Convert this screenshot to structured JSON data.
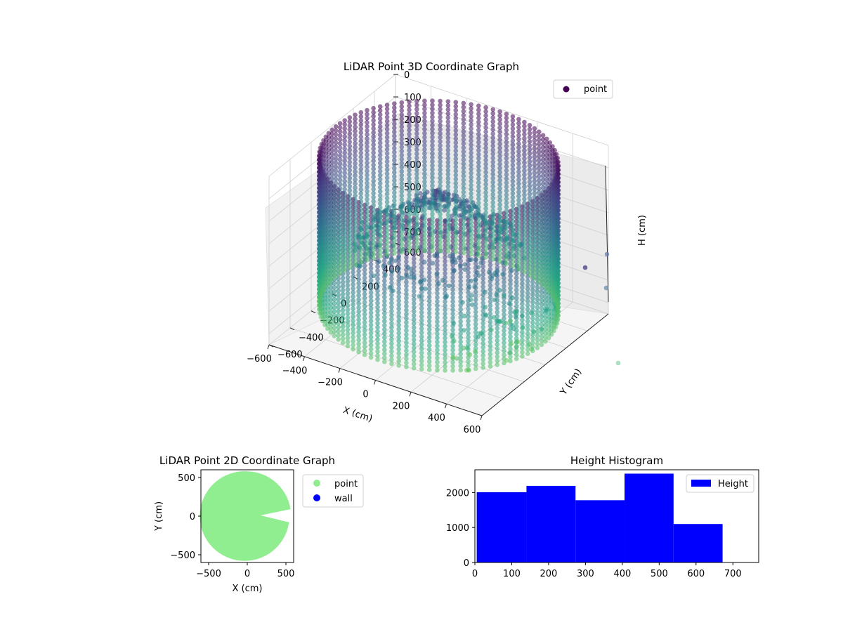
{
  "chart_data": [
    {
      "type": "scatter",
      "projection": "3d",
      "title": "LiDAR Point 3D Coordinate Graph",
      "xlabel": "X (cm)",
      "ylabel": "Y (cm)",
      "zlabel": "H (cm)",
      "xlim": [
        -600,
        600
      ],
      "ylim": [
        -600,
        600
      ],
      "zlim": [
        750,
        0
      ],
      "x_ticks": [
        "−600",
        "−400",
        "−200",
        "0",
        "200",
        "400",
        "600"
      ],
      "y_ticks": [
        "−600",
        "−400",
        "−200",
        "0",
        "200",
        "400",
        "600"
      ],
      "z_ticks": [
        "0",
        "100",
        "200",
        "300",
        "400",
        "500",
        "600",
        "700"
      ],
      "legend": [
        "point"
      ],
      "legend_position": "upper-right",
      "colormap": "viridis",
      "grid": true,
      "description_of_data": "cylindrical wall of points, radius about 580 cm, heights 0 to 670 cm, plus a central mound of points near the top",
      "wall_radius": 580,
      "wall_height_range": [
        0,
        670
      ],
      "series": [
        {
          "name": "point",
          "color": "#440154"
        }
      ]
    },
    {
      "type": "scatter",
      "title": "LiDAR Point 2D Coordinate Graph",
      "xlabel": "X (cm)",
      "ylabel": "Y (cm)",
      "xlim": [
        -600,
        600
      ],
      "ylim": [
        -600,
        600
      ],
      "x_ticks": [
        "−500",
        "0",
        "500"
      ],
      "y_ticks": [
        "−500",
        "0",
        "500"
      ],
      "legend_position": "outside-right",
      "series": [
        {
          "name": "point",
          "color": "#90ee90"
        },
        {
          "name": "wall",
          "color": "#0000ff"
        }
      ]
    },
    {
      "type": "bar",
      "subtype": "histogram",
      "title": "Height Histogram",
      "xlim": [
        0,
        770
      ],
      "ylim": [
        0,
        2650
      ],
      "x_ticks": [
        "0",
        "100",
        "200",
        "300",
        "400",
        "500",
        "600",
        "700"
      ],
      "y_ticks": [
        "0",
        "1000",
        "2000"
      ],
      "legend_position": "upper-right",
      "bin_edges": [
        5,
        140,
        273,
        406,
        539,
        672
      ],
      "values": [
        2010,
        2190,
        1780,
        2540,
        1100
      ],
      "series": [
        {
          "name": "Height",
          "color": "#0000ff"
        }
      ]
    }
  ]
}
